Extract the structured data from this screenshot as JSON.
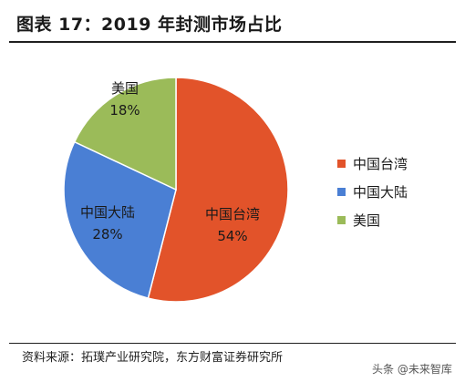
{
  "title": "图表 17：2019 年封测市场占比",
  "source": "资料来源：拓璞产业研究院，东方财富证券研究所",
  "watermark": "头条 @未来智库",
  "chart_data": {
    "type": "pie",
    "title": "图表 17：2019 年封测市场占比",
    "slices": [
      {
        "label": "中国台湾",
        "value": 54,
        "value_label": "54%",
        "color": "#e2532a"
      },
      {
        "label": "中国大陆",
        "value": 28,
        "value_label": "28%",
        "color": "#4a7fd4"
      },
      {
        "label": "美国",
        "value": 18,
        "value_label": "18%",
        "color": "#9bbb59"
      }
    ],
    "start_angle": "12 o'clock",
    "direction": "clockwise",
    "legend": {
      "position": "right",
      "entries": [
        "中国台湾",
        "中国大陆",
        "美国"
      ]
    }
  }
}
